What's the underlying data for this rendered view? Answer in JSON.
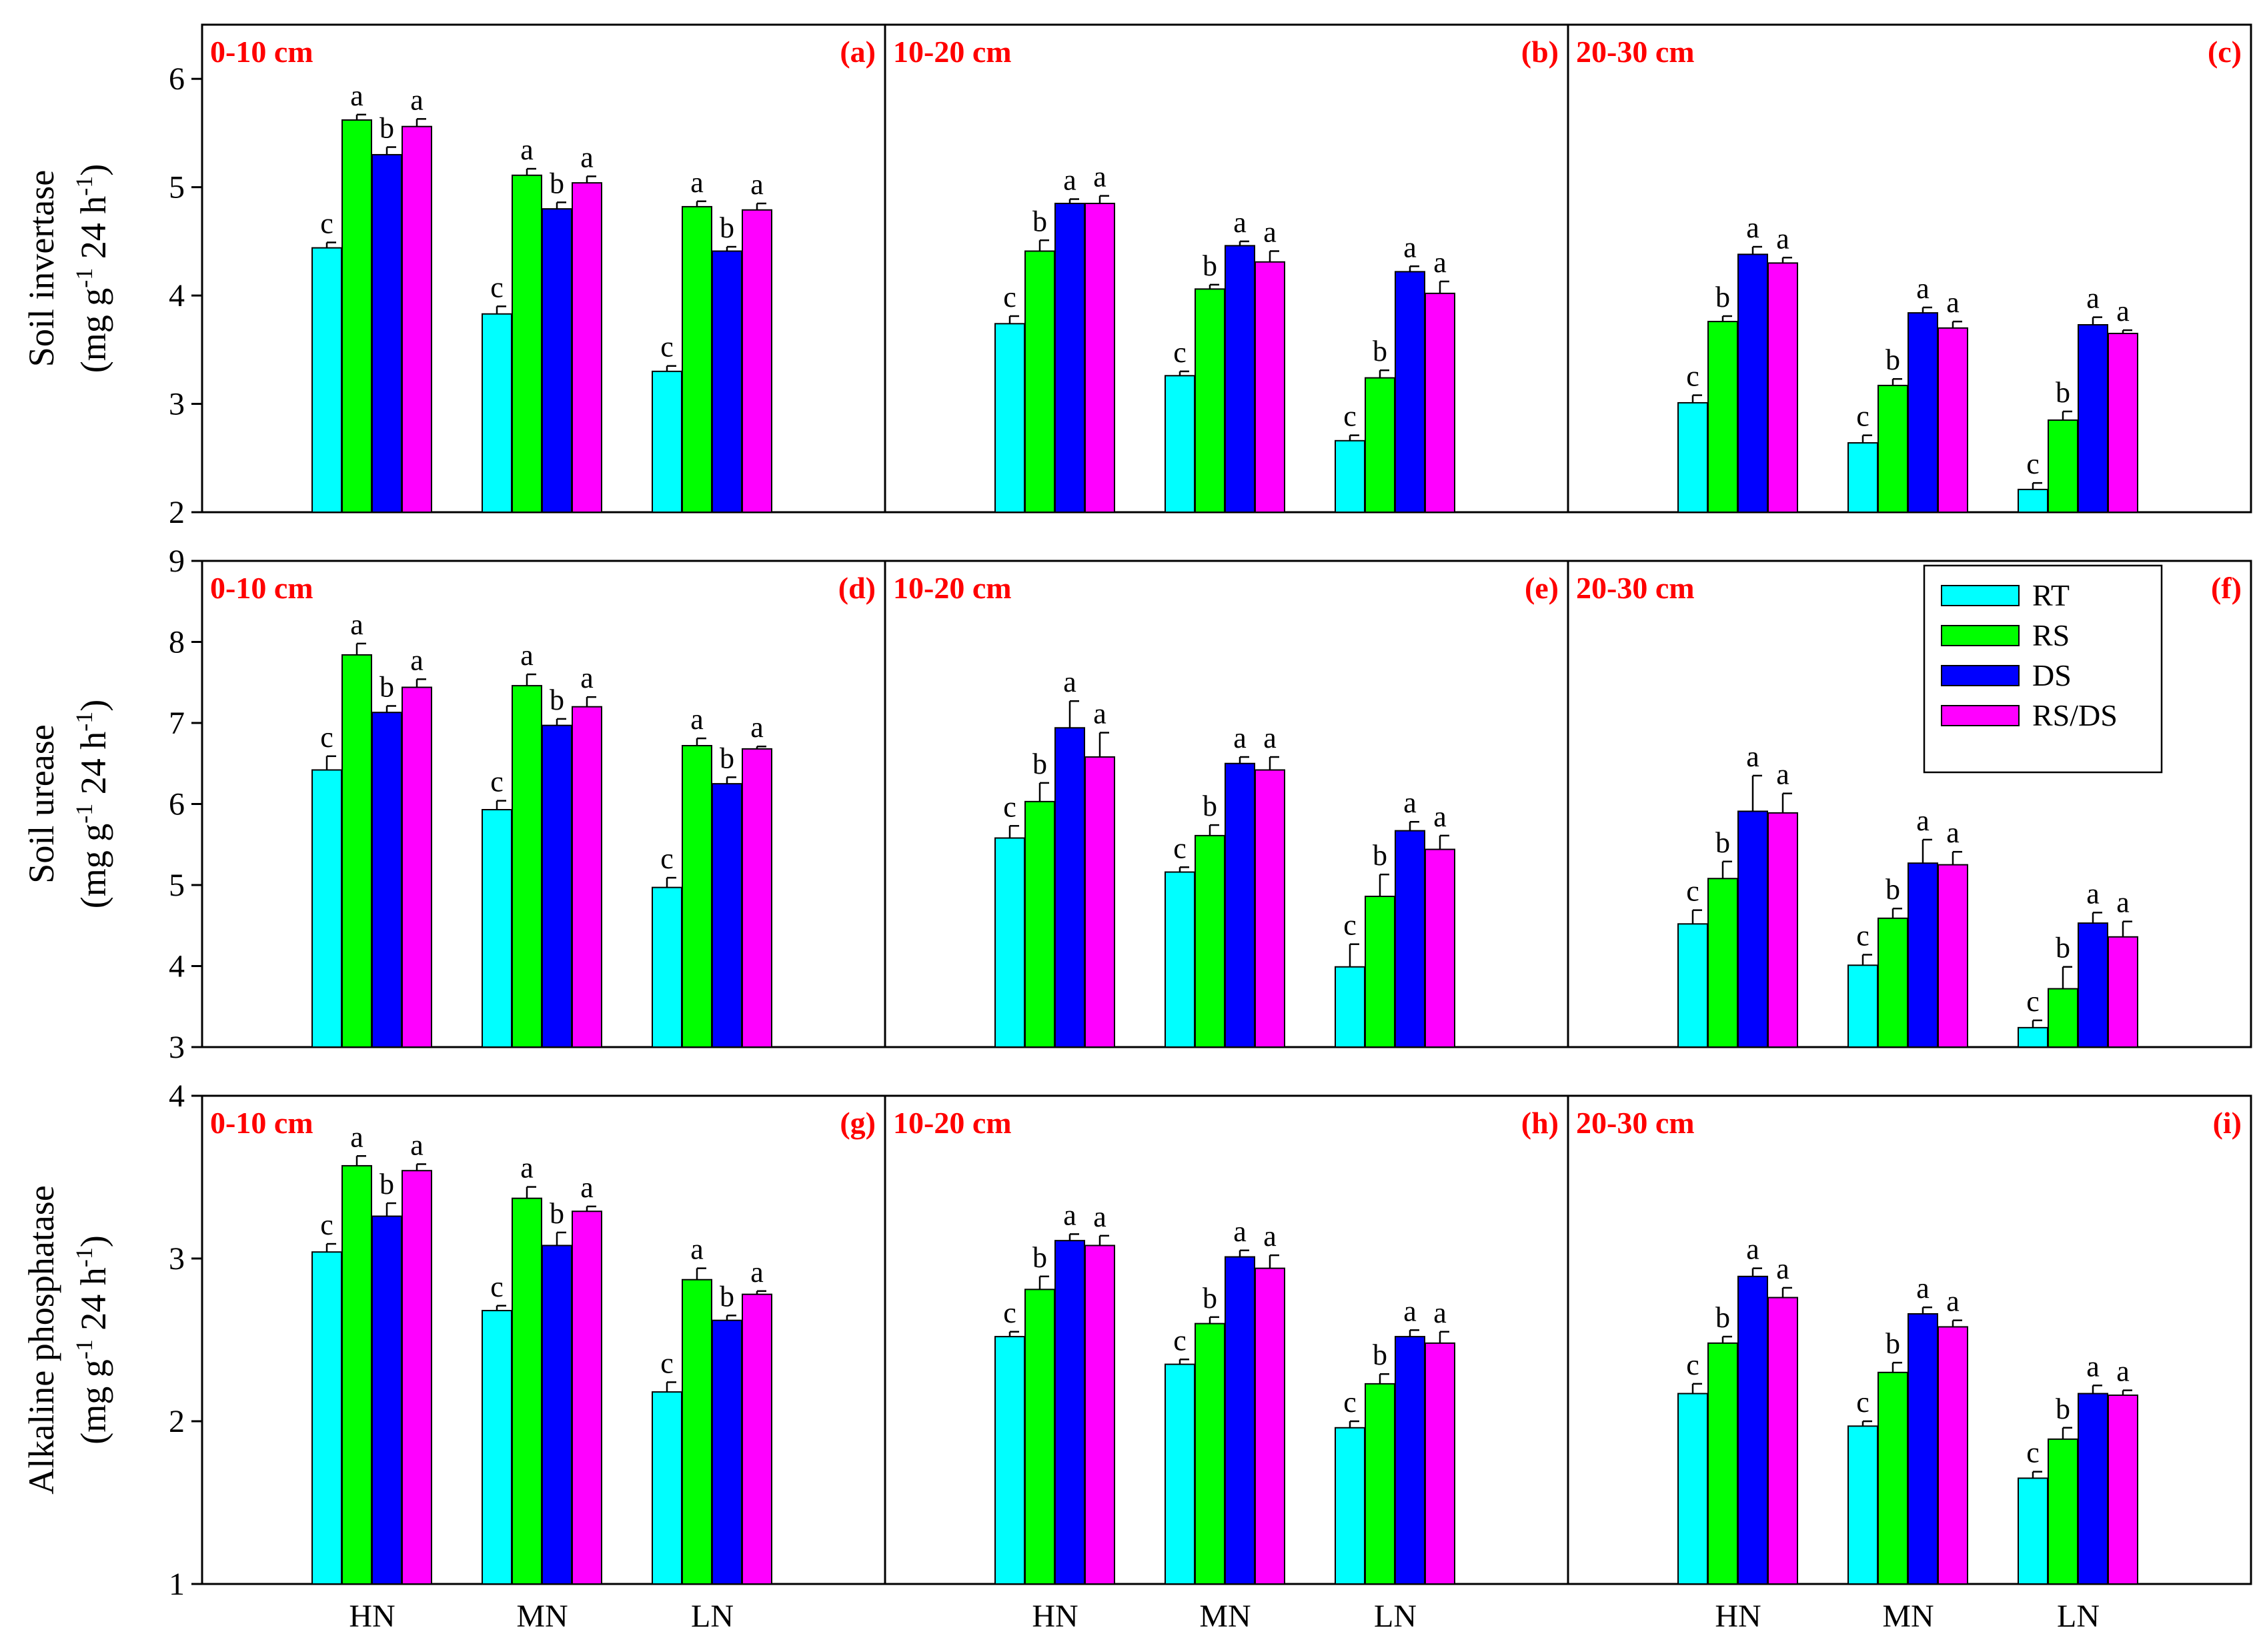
{
  "colors": {
    "RT": "#00FFFF",
    "RS": "#00FF00",
    "DS": "#0000FF",
    "RS/DS": "#FF00FF",
    "depth_label": "#FF0000",
    "panel_label": "#FF0000"
  },
  "legend": [
    "RT",
    "RS",
    "DS",
    "RS/DS"
  ],
  "chart_data": [
    {
      "type": "bar",
      "ylabel": [
        "Soil invertase",
        "(mg g^-1 24 h^-1)"
      ],
      "ylim": [
        2,
        6.5
      ],
      "yticks": [
        "2",
        "3",
        "4",
        "5",
        "6"
      ],
      "categories": [
        "HN",
        "MN",
        "LN"
      ],
      "panels": [
        {
          "depth": "0-10 cm",
          "label": "(a)",
          "series": [
            {
              "name": "RT",
              "values": [
                4.44,
                3.83,
                3.3
              ],
              "errors": [
                0.05,
                0.07,
                0.05
              ],
              "sig": [
                "c",
                "c",
                "c"
              ]
            },
            {
              "name": "RS",
              "values": [
                5.62,
                5.11,
                4.82
              ],
              "errors": [
                0.05,
                0.06,
                0.05
              ],
              "sig": [
                "a",
                "a",
                "a"
              ]
            },
            {
              "name": "DS",
              "values": [
                5.3,
                4.8,
                4.41
              ],
              "errors": [
                0.07,
                0.06,
                0.04
              ],
              "sig": [
                "b",
                "b",
                "b"
              ]
            },
            {
              "name": "RS/DS",
              "values": [
                5.56,
                5.04,
                4.79
              ],
              "errors": [
                0.07,
                0.06,
                0.06
              ],
              "sig": [
                "a",
                "a",
                "a"
              ]
            }
          ]
        },
        {
          "depth": "10-20 cm",
          "label": "(b)",
          "series": [
            {
              "name": "RT",
              "values": [
                3.74,
                3.26,
                2.66
              ],
              "errors": [
                0.07,
                0.04,
                0.05
              ],
              "sig": [
                "c",
                "c",
                "c"
              ]
            },
            {
              "name": "RS",
              "values": [
                4.41,
                4.06,
                3.24
              ],
              "errors": [
                0.1,
                0.04,
                0.07
              ],
              "sig": [
                "b",
                "b",
                "b"
              ]
            },
            {
              "name": "DS",
              "values": [
                4.85,
                4.46,
                4.22
              ],
              "errors": [
                0.04,
                0.04,
                0.05
              ],
              "sig": [
                "a",
                "a",
                "a"
              ]
            },
            {
              "name": "RS/DS",
              "values": [
                4.85,
                4.31,
                4.02
              ],
              "errors": [
                0.07,
                0.1,
                0.11
              ],
              "sig": [
                "a",
                "a",
                "a"
              ]
            }
          ]
        },
        {
          "depth": "20-30 cm",
          "label": "(c)",
          "series": [
            {
              "name": "RT",
              "values": [
                3.01,
                2.64,
                2.21
              ],
              "errors": [
                0.07,
                0.07,
                0.06
              ],
              "sig": [
                "c",
                "c",
                "c"
              ]
            },
            {
              "name": "RS",
              "values": [
                3.76,
                3.17,
                2.85
              ],
              "errors": [
                0.05,
                0.06,
                0.08
              ],
              "sig": [
                "b",
                "b",
                "b"
              ]
            },
            {
              "name": "DS",
              "values": [
                4.38,
                3.84,
                3.73
              ],
              "errors": [
                0.07,
                0.05,
                0.07
              ],
              "sig": [
                "a",
                "a",
                "a"
              ]
            },
            {
              "name": "RS/DS",
              "values": [
                4.3,
                3.7,
                3.65
              ],
              "errors": [
                0.05,
                0.06,
                0.03
              ],
              "sig": [
                "a",
                "a",
                "a"
              ]
            }
          ]
        }
      ]
    },
    {
      "type": "bar",
      "ylabel": [
        "Soil urease",
        "(mg g^-1 24 h^-1)"
      ],
      "ylim": [
        3,
        9
      ],
      "yticks": [
        "3",
        "4",
        "5",
        "6",
        "7",
        "8",
        "9"
      ],
      "categories": [
        "HN",
        "MN",
        "LN"
      ],
      "panels": [
        {
          "depth": "0-10 cm",
          "label": "(d)",
          "series": [
            {
              "name": "RT",
              "values": [
                6.42,
                5.93,
                4.97
              ],
              "errors": [
                0.17,
                0.11,
                0.12
              ],
              "sig": [
                "c",
                "c",
                "c"
              ]
            },
            {
              "name": "RS",
              "values": [
                7.84,
                7.46,
                6.72
              ],
              "errors": [
                0.14,
                0.14,
                0.09
              ],
              "sig": [
                "a",
                "a",
                "a"
              ]
            },
            {
              "name": "DS",
              "values": [
                7.13,
                6.97,
                6.25
              ],
              "errors": [
                0.08,
                0.08,
                0.08
              ],
              "sig": [
                "b",
                "b",
                "b"
              ]
            },
            {
              "name": "RS/DS",
              "values": [
                7.44,
                7.2,
                6.68
              ],
              "errors": [
                0.1,
                0.12,
                0.03
              ],
              "sig": [
                "a",
                "a",
                "a"
              ]
            }
          ]
        },
        {
          "depth": "10-20 cm",
          "label": "(e)",
          "series": [
            {
              "name": "RT",
              "values": [
                5.58,
                5.16,
                3.99
              ],
              "errors": [
                0.15,
                0.06,
                0.28
              ],
              "sig": [
                "c",
                "c",
                "c"
              ]
            },
            {
              "name": "RS",
              "values": [
                6.03,
                5.61,
                4.86
              ],
              "errors": [
                0.23,
                0.13,
                0.27
              ],
              "sig": [
                "b",
                "b",
                "b"
              ]
            },
            {
              "name": "DS",
              "values": [
                6.94,
                6.5,
                5.67
              ],
              "errors": [
                0.33,
                0.08,
                0.11
              ],
              "sig": [
                "a",
                "a",
                "a"
              ]
            },
            {
              "name": "RS/DS",
              "values": [
                6.58,
                6.42,
                5.44
              ],
              "errors": [
                0.3,
                0.16,
                0.17
              ],
              "sig": [
                "a",
                "a",
                "a"
              ]
            }
          ]
        },
        {
          "depth": "20-30 cm",
          "label": "(f)",
          "series": [
            {
              "name": "RT",
              "values": [
                4.52,
                4.01,
                3.24
              ],
              "errors": [
                0.17,
                0.13,
                0.09
              ],
              "sig": [
                "c",
                "c",
                "c"
              ]
            },
            {
              "name": "RS",
              "values": [
                5.08,
                4.59,
                3.72
              ],
              "errors": [
                0.21,
                0.12,
                0.27
              ],
              "sig": [
                "b",
                "b",
                "b"
              ]
            },
            {
              "name": "DS",
              "values": [
                5.91,
                5.27,
                4.53
              ],
              "errors": [
                0.44,
                0.29,
                0.13
              ],
              "sig": [
                "a",
                "a",
                "a"
              ]
            },
            {
              "name": "RS/DS",
              "values": [
                5.89,
                5.25,
                4.36
              ],
              "errors": [
                0.24,
                0.16,
                0.19
              ],
              "sig": [
                "a",
                "a",
                "a"
              ]
            }
          ]
        }
      ]
    },
    {
      "type": "bar",
      "ylabel": [
        "Alkaline phosphatase",
        "(mg g^-1 24 h^-1)"
      ],
      "ylim": [
        1,
        4
      ],
      "yticks": [
        "1",
        "2",
        "3",
        "4"
      ],
      "categories": [
        "HN",
        "MN",
        "LN"
      ],
      "panels": [
        {
          "depth": "0-10 cm",
          "label": "(g)",
          "series": [
            {
              "name": "RT",
              "values": [
                3.04,
                2.68,
                2.18
              ],
              "errors": [
                0.05,
                0.03,
                0.06
              ],
              "sig": [
                "c",
                "c",
                "c"
              ]
            },
            {
              "name": "RS",
              "values": [
                3.57,
                3.37,
                2.87
              ],
              "errors": [
                0.06,
                0.07,
                0.07
              ],
              "sig": [
                "a",
                "a",
                "a"
              ]
            },
            {
              "name": "DS",
              "values": [
                3.26,
                3.08,
                2.62
              ],
              "errors": [
                0.08,
                0.08,
                0.03
              ],
              "sig": [
                "b",
                "b",
                "b"
              ]
            },
            {
              "name": "RS/DS",
              "values": [
                3.54,
                3.29,
                2.78
              ],
              "errors": [
                0.04,
                0.03,
                0.02
              ],
              "sig": [
                "a",
                "a",
                "a"
              ]
            }
          ]
        },
        {
          "depth": "10-20 cm",
          "label": "(h)",
          "series": [
            {
              "name": "RT",
              "values": [
                2.52,
                2.35,
                1.96
              ],
              "errors": [
                0.03,
                0.03,
                0.04
              ],
              "sig": [
                "c",
                "c",
                "c"
              ]
            },
            {
              "name": "RS",
              "values": [
                2.81,
                2.6,
                2.23
              ],
              "errors": [
                0.08,
                0.04,
                0.06
              ],
              "sig": [
                "b",
                "b",
                "b"
              ]
            },
            {
              "name": "DS",
              "values": [
                3.11,
                3.01,
                2.52
              ],
              "errors": [
                0.04,
                0.04,
                0.04
              ],
              "sig": [
                "a",
                "a",
                "a"
              ]
            },
            {
              "name": "RS/DS",
              "values": [
                3.08,
                2.94,
                2.48
              ],
              "errors": [
                0.06,
                0.08,
                0.07
              ],
              "sig": [
                "a",
                "a",
                "a"
              ]
            }
          ]
        },
        {
          "depth": "20-30 cm",
          "label": "(i)",
          "series": [
            {
              "name": "RT",
              "values": [
                2.17,
                1.97,
                1.65
              ],
              "errors": [
                0.06,
                0.03,
                0.04
              ],
              "sig": [
                "c",
                "c",
                "c"
              ]
            },
            {
              "name": "RS",
              "values": [
                2.48,
                2.3,
                1.89
              ],
              "errors": [
                0.04,
                0.06,
                0.07
              ],
              "sig": [
                "b",
                "b",
                "b"
              ]
            },
            {
              "name": "DS",
              "values": [
                2.89,
                2.66,
                2.17
              ],
              "errors": [
                0.05,
                0.04,
                0.05
              ],
              "sig": [
                "a",
                "a",
                "a"
              ]
            },
            {
              "name": "RS/DS",
              "values": [
                2.76,
                2.58,
                2.16
              ],
              "errors": [
                0.06,
                0.04,
                0.03
              ],
              "sig": [
                "a",
                "a",
                "a"
              ]
            }
          ]
        }
      ]
    }
  ]
}
